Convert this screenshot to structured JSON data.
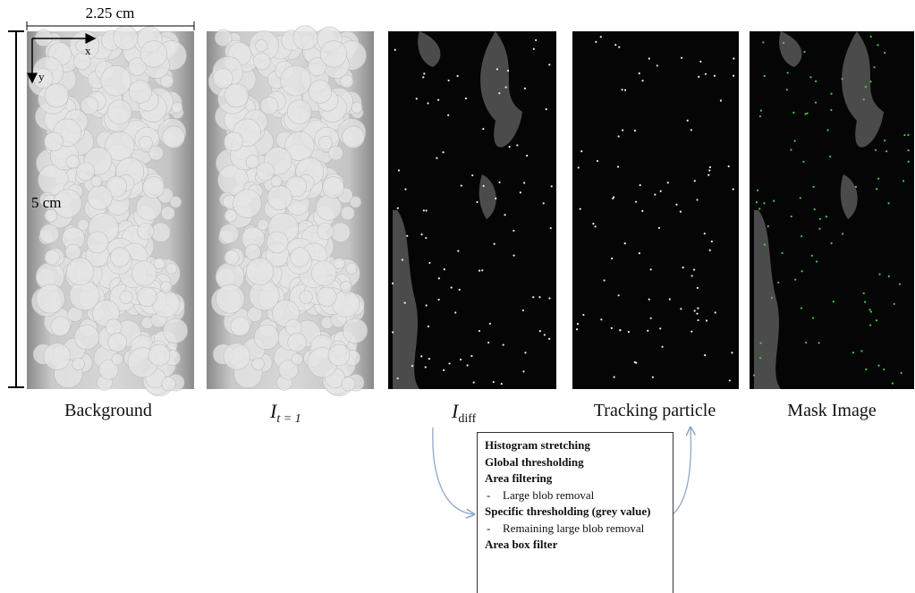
{
  "figure": {
    "scale": {
      "width": "2.25 cm",
      "height": "5 cm",
      "x_axis": "x",
      "y_axis": "y"
    },
    "panels": [
      {
        "label": "Background"
      },
      {
        "label": {
          "main": "I",
          "sub": "t = 1"
        }
      },
      {
        "label": {
          "main": "I",
          "sub": "diff"
        }
      },
      {
        "label": "Tracking particle"
      },
      {
        "label": "Mask Image"
      }
    ],
    "process": [
      {
        "text": "Histogram stretching"
      },
      {
        "text": "Global thresholding"
      },
      {
        "text": "Area filtering",
        "sub": "Large blob removal"
      },
      {
        "text": "Specific thresholding (grey value)",
        "sub": "Remaining large blob removal"
      },
      {
        "text": "Area box filter"
      }
    ]
  }
}
